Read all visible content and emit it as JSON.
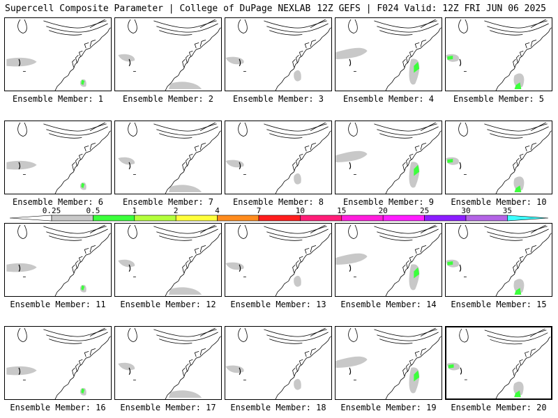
{
  "header": {
    "left": "Supercell Composite Parameter | College of DuPage NEXLAB",
    "right": "12Z GEFS | F024 Valid: 12Z FRI JUN 06 2025"
  },
  "legend": {
    "ticks": [
      "0.25",
      "0.5",
      "1",
      "2",
      "4",
      "7",
      "10",
      "15",
      "20",
      "25",
      "30",
      "35"
    ],
    "colors": [
      "#c8c8c8",
      "#3cff3c",
      "#b4ff3c",
      "#ffff3c",
      "#ff8c1e",
      "#ff1e1e",
      "#ff1e78",
      "#ff1edc",
      "#ff1eff",
      "#8c1eff",
      "#b464e6",
      "#3cffff"
    ]
  },
  "panels": [
    {
      "label": "Ensemble Member: 1",
      "selected": false
    },
    {
      "label": "Ensemble Member: 2",
      "selected": false
    },
    {
      "label": "Ensemble Member: 3",
      "selected": false
    },
    {
      "label": "Ensemble Member: 4",
      "selected": false
    },
    {
      "label": "Ensemble Member: 5",
      "selected": false
    },
    {
      "label": "Ensemble Member: 6",
      "selected": false
    },
    {
      "label": "Ensemble Member: 7",
      "selected": false
    },
    {
      "label": "Ensemble Member: 8",
      "selected": false
    },
    {
      "label": "Ensemble Member: 9",
      "selected": false
    },
    {
      "label": "Ensemble Member: 10",
      "selected": false
    },
    {
      "label": "Ensemble Member: 11",
      "selected": false
    },
    {
      "label": "Ensemble Member: 12",
      "selected": false
    },
    {
      "label": "Ensemble Member: 13",
      "selected": false
    },
    {
      "label": "Ensemble Member: 14",
      "selected": false
    },
    {
      "label": "Ensemble Member: 15",
      "selected": false
    },
    {
      "label": "Ensemble Member: 16",
      "selected": false
    },
    {
      "label": "Ensemble Member: 17",
      "selected": false
    },
    {
      "label": "Ensemble Member: 18",
      "selected": false
    },
    {
      "label": "Ensemble Member: 19",
      "selected": false
    },
    {
      "label": "Ensemble Member: 20",
      "selected": true
    }
  ]
}
